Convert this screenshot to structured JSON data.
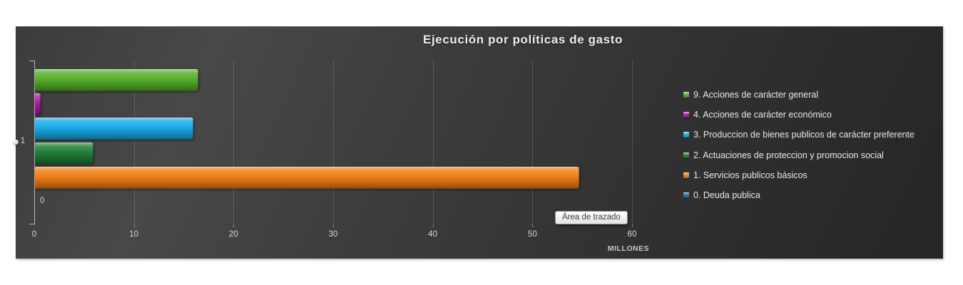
{
  "chart": {
    "title": "Ejecución por políticas de gasto",
    "tooltip_label": "Área de trazado",
    "category_label": "1",
    "axis_unit_label": "MILLONES",
    "background_dark": "#3a3a3a",
    "text_color": "#e8e8e8"
  },
  "chart_data": {
    "type": "bar",
    "orientation": "horizontal",
    "title": "Ejecución por políticas de gasto",
    "categories": [
      "1"
    ],
    "xlabel": "MILLONES",
    "ylabel": "",
    "xlim": [
      0,
      60
    ],
    "x_ticks": [
      0,
      10,
      20,
      30,
      40,
      50,
      60
    ],
    "grid": true,
    "legend_position": "right",
    "units": "millones",
    "series": [
      {
        "name": "9. Acciones de carácter general",
        "value": 16.4,
        "color": "#53ad28",
        "data_label": ""
      },
      {
        "name": "4. Acciones de carácter económico",
        "value": 0.6,
        "color": "#ad13a5",
        "data_label": ""
      },
      {
        "name": "3. Produccion de bienes publicos de carácter preferente",
        "value": 15.9,
        "color": "#16a9e4",
        "data_label": ""
      },
      {
        "name": "2. Actuaciones de proteccion y promocion social",
        "value": 5.9,
        "color": "#1d7c35",
        "data_label": ""
      },
      {
        "name": "1. Servicios publicos básicos",
        "value": 54.6,
        "color": "#ef7d12",
        "data_label": ""
      },
      {
        "name": "0. Deuda publica",
        "value": 0,
        "color": "#1a6a9e",
        "data_label": "0"
      }
    ]
  }
}
